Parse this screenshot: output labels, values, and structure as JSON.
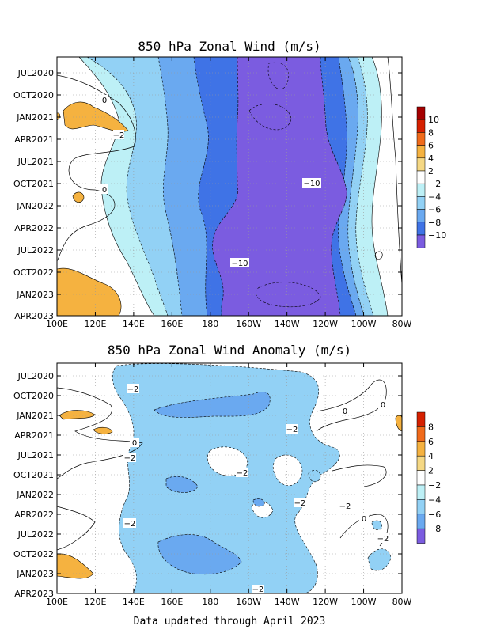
{
  "footer": "Data updated through April 2023",
  "colors": {
    "pos10": "#a50000",
    "pos8": "#d52000",
    "pos6": "#f06a1a",
    "pos4": "#f5b240",
    "pos2": "#f5d884",
    "neutral": "#ffffff",
    "neg2": "#bdf0f6",
    "neg4": "#92d1f5",
    "neg6": "#6aa9f0",
    "neg8": "#3f73e6",
    "neg10": "#2d5bd8",
    "neg12": "#7b5ce0"
  },
  "chart_data": [
    {
      "type": "heatmap",
      "title": "850 hPa Zonal Wind (m/s)",
      "x_ticks": [
        "100E",
        "120E",
        "140E",
        "160E",
        "180",
        "160W",
        "140W",
        "120W",
        "100W",
        "80W"
      ],
      "y_ticks": [
        "JUL2020",
        "OCT2020",
        "JAN2021",
        "APR2021",
        "JUL2021",
        "OCT2021",
        "JAN2022",
        "APR2022",
        "JUL2022",
        "OCT2022",
        "JAN2023",
        "APR2023"
      ],
      "xlim": [
        "100E",
        "80W"
      ],
      "ylim": [
        "JUL2020",
        "APR2023"
      ],
      "grid": true,
      "colorbar": {
        "labels": [
          "10",
          "8",
          "6",
          "4",
          "2",
          "−2",
          "−4",
          "−6",
          "−8",
          "−10"
        ]
      },
      "contour_labels": [
        "0",
        "−2",
        "0",
        "−10",
        "−10"
      ]
    },
    {
      "type": "heatmap",
      "title": "850 hPa Zonal Wind Anomaly (m/s)",
      "x_ticks": [
        "100E",
        "120E",
        "140E",
        "160E",
        "180",
        "160W",
        "140W",
        "120W",
        "100W",
        "80W"
      ],
      "y_ticks": [
        "JUL2020",
        "OCT2020",
        "JAN2021",
        "APR2021",
        "JUL2021",
        "OCT2021",
        "JAN2022",
        "APR2022",
        "JUL2022",
        "OCT2022",
        "JAN2023",
        "APR2023"
      ],
      "xlim": [
        "100E",
        "80W"
      ],
      "ylim": [
        "JUL2020",
        "APR2023"
      ],
      "grid": true,
      "colorbar": {
        "labels": [
          "8",
          "6",
          "4",
          "2",
          "−2",
          "−4",
          "−6",
          "−8"
        ]
      },
      "contour_labels": [
        "−2",
        "0",
        "0",
        "−2",
        "0",
        "−2",
        "−2",
        "−2",
        "−2",
        "−2",
        "0",
        "−2",
        "−2",
        "0"
      ]
    }
  ]
}
